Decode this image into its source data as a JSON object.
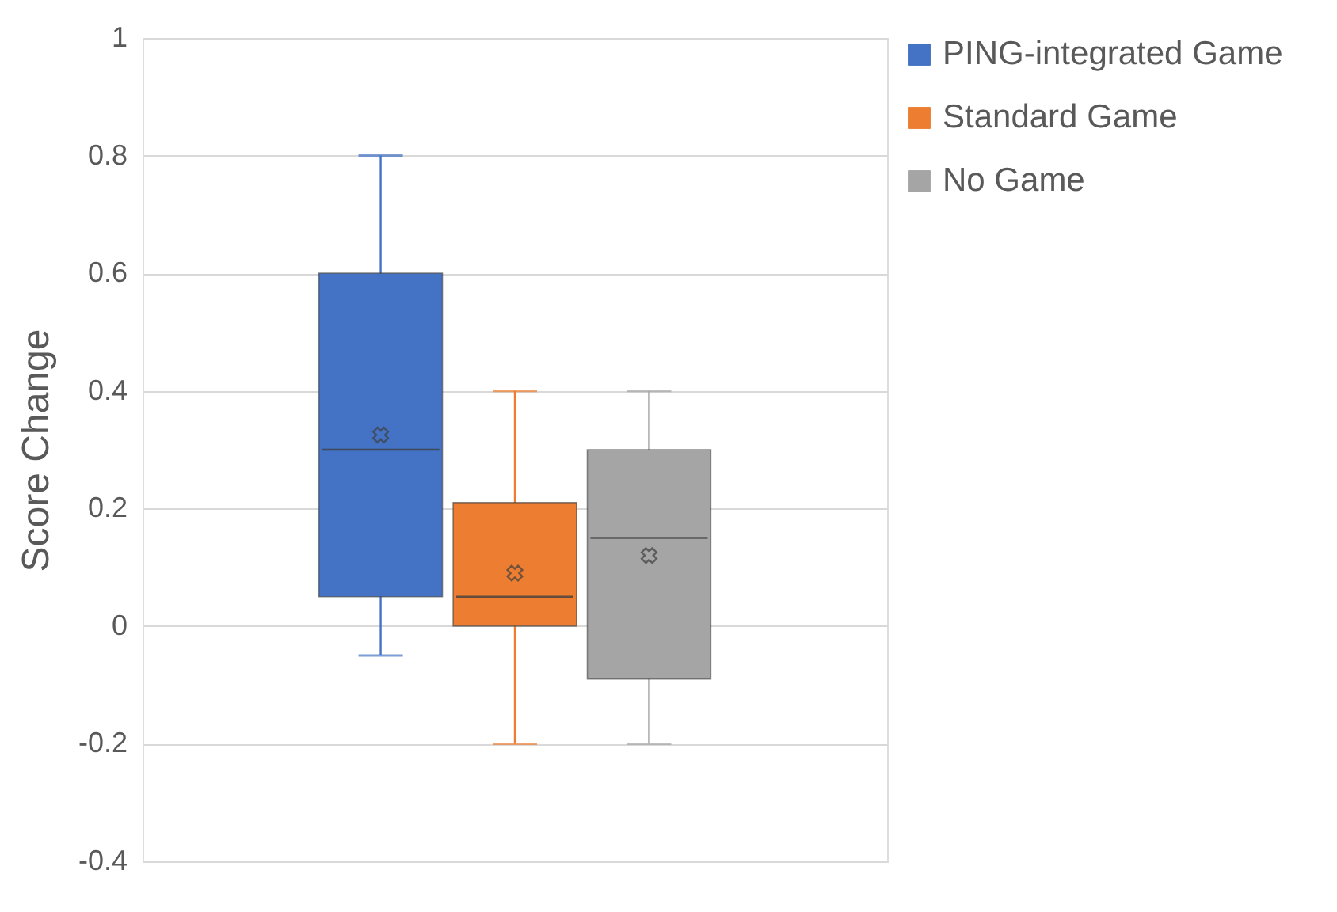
{
  "chart_data": {
    "type": "box",
    "ylabel": "Score Change",
    "categories": [
      null
    ],
    "series": [
      {
        "name": "PING-integrated Game",
        "color": "#4472c4",
        "boxes": [
          {
            "low": -0.05,
            "q1": 0.05,
            "median": 0.3,
            "q3": 0.6,
            "high": 0.8,
            "mean": 0.325
          }
        ]
      },
      {
        "name": "Standard Game",
        "color": "#ed7d31",
        "boxes": [
          {
            "low": -0.2,
            "q1": 0,
            "median": 0.05,
            "q3": 0.21,
            "high": 0.4,
            "mean": 0.09
          }
        ]
      },
      {
        "name": "No Game",
        "color": "#a5a5a5",
        "boxes": [
          {
            "low": -0.2,
            "q1": -0.09,
            "median": 0.15,
            "q3": 0.3,
            "high": 0.4,
            "mean": 0.12
          }
        ]
      }
    ],
    "ylim": [
      -0.4,
      1
    ],
    "yticks": [
      -0.4,
      -0.2,
      0,
      0.2,
      0.4,
      0.6,
      0.8,
      1
    ],
    "grid": "y",
    "legend": "right",
    "marker": "cross",
    "tick_labels": "y"
  }
}
